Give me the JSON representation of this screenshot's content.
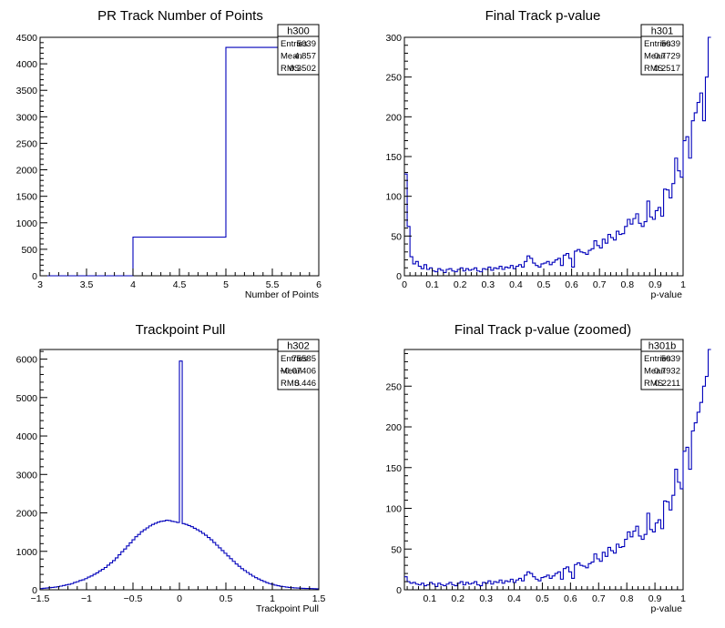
{
  "chart_data": [
    {
      "type": "histogram",
      "title": "PR Track Number of Points",
      "xlabel": "Number of Points",
      "ylabel": "",
      "xlim": [
        3,
        6
      ],
      "ylim": [
        0,
        4500
      ],
      "xticks": [
        3,
        3.5,
        4,
        4.5,
        5,
        5.5,
        6
      ],
      "xtick_labels": [
        "3",
        "3.5",
        "4",
        "4.5",
        "5",
        "5.5",
        "6"
      ],
      "yticks": [
        0,
        500,
        1000,
        1500,
        2000,
        2500,
        3000,
        3500,
        4000,
        4500
      ],
      "ytick_labels": [
        "0",
        "500",
        "1000",
        "1500",
        "2000",
        "2500",
        "3000",
        "3500",
        "4000",
        "4500"
      ],
      "bins": [
        [
          3,
          4,
          0
        ],
        [
          4,
          5,
          730
        ],
        [
          5,
          6,
          4310
        ]
      ],
      "stats": {
        "name": "h300",
        "rows": [
          [
            "Entries",
            "5039"
          ],
          [
            "Mean",
            "4.857"
          ],
          [
            "RMS",
            "0.3502"
          ]
        ]
      }
    },
    {
      "type": "histogram",
      "title": "Final Track p-value",
      "xlabel": "p-value",
      "ylabel": "",
      "xlim": [
        0,
        1
      ],
      "ylim": [
        0,
        300
      ],
      "xticks": [
        0,
        0.1,
        0.2,
        0.3,
        0.4,
        0.5,
        0.6,
        0.7,
        0.8,
        0.9,
        1
      ],
      "xtick_labels": [
        "0",
        "0.1",
        "0.2",
        "0.3",
        "0.4",
        "0.5",
        "0.6",
        "0.7",
        "0.8",
        "0.9",
        "1"
      ],
      "yticks": [
        0,
        50,
        100,
        150,
        200,
        250,
        300
      ],
      "ytick_labels": [
        "0",
        "50",
        "100",
        "150",
        "200",
        "250",
        "300"
      ],
      "bin_width": 0.01,
      "values": [
        128,
        62,
        24,
        15,
        18,
        12,
        9,
        14,
        8,
        10,
        6,
        5,
        9,
        7,
        4,
        8,
        9,
        6,
        5,
        8,
        10,
        6,
        9,
        7,
        8,
        10,
        6,
        5,
        9,
        8,
        11,
        7,
        10,
        9,
        12,
        8,
        11,
        10,
        13,
        9,
        12,
        14,
        11,
        18,
        25,
        22,
        16,
        13,
        11,
        15,
        16,
        18,
        14,
        17,
        20,
        22,
        13,
        26,
        28,
        22,
        11,
        31,
        33,
        30,
        29,
        27,
        32,
        34,
        44,
        38,
        35,
        46,
        41,
        52,
        48,
        45,
        56,
        52,
        53,
        62,
        71,
        65,
        72,
        78,
        66,
        62,
        68,
        94,
        74,
        71,
        82,
        86,
        75,
        109,
        108,
        98,
        116,
        148,
        132,
        124,
        170,
        175,
        148,
        195,
        205,
        218,
        230,
        195,
        250,
        300
      ],
      "stats": {
        "name": "h301",
        "rows": [
          [
            "Entries",
            "5039"
          ],
          [
            "Mean",
            "0.7729"
          ],
          [
            "RMS",
            "0.2517"
          ]
        ]
      }
    },
    {
      "type": "histogram",
      "title": "Trackpoint Pull",
      "xlabel": "Trackpoint Pull",
      "ylabel": "",
      "xlim": [
        -1.5,
        1.5
      ],
      "ylim": [
        0,
        6250
      ],
      "xticks": [
        -1.5,
        -1,
        -0.5,
        0,
        0.5,
        1,
        1.5
      ],
      "xtick_labels": [
        "−1.5",
        "−1",
        "−0.5",
        "0",
        "0.5",
        "1",
        "1.5"
      ],
      "yticks": [
        0,
        1000,
        2000,
        3000,
        4000,
        5000,
        6000
      ],
      "ytick_labels": [
        "0",
        "1000",
        "2000",
        "3000",
        "4000",
        "5000",
        "6000"
      ],
      "bin_width": 0.03,
      "values": [
        30,
        40,
        45,
        55,
        60,
        70,
        80,
        95,
        110,
        125,
        140,
        160,
        190,
        210,
        240,
        260,
        290,
        330,
        360,
        400,
        440,
        490,
        530,
        580,
        640,
        700,
        760,
        830,
        910,
        990,
        1060,
        1140,
        1220,
        1300,
        1380,
        1440,
        1510,
        1560,
        1610,
        1660,
        1700,
        1730,
        1760,
        1780,
        1790,
        1810,
        1800,
        1780,
        1770,
        1750,
        5950,
        1720,
        1700,
        1670,
        1640,
        1600,
        1560,
        1520,
        1470,
        1420,
        1360,
        1300,
        1230,
        1160,
        1090,
        1020,
        950,
        880,
        810,
        740,
        670,
        610,
        550,
        500,
        450,
        400,
        355,
        315,
        280,
        245,
        215,
        185,
        160,
        140,
        120,
        105,
        90,
        80,
        70,
        60,
        55,
        50,
        45,
        40,
        38,
        35,
        33,
        30,
        28,
        26
      ],
      "stats": {
        "name": "h302",
        "rows": [
          [
            "Entries",
            "75585"
          ],
          [
            "Mean",
            "−0.07406"
          ],
          [
            "RMS",
            "0.446"
          ]
        ]
      }
    },
    {
      "type": "histogram",
      "title": "Final Track p-value (zoomed)",
      "xlabel": "p-value",
      "ylabel": "",
      "xlim": [
        0.01,
        1
      ],
      "ylim": [
        0,
        295
      ],
      "xticks": [
        0.1,
        0.2,
        0.3,
        0.4,
        0.5,
        0.6,
        0.7,
        0.8,
        0.9,
        1
      ],
      "xtick_labels": [
        "0.1",
        "0.2",
        "0.3",
        "0.4",
        "0.5",
        "0.6",
        "0.7",
        "0.8",
        "0.9",
        "1"
      ],
      "yticks": [
        0,
        50,
        100,
        150,
        200,
        250
      ],
      "ytick_labels": [
        "0",
        "50",
        "100",
        "150",
        "200",
        "250"
      ],
      "bin_width": 0.0099,
      "values": [
        16,
        10,
        8,
        9,
        7,
        6,
        8,
        5,
        6,
        9,
        7,
        4,
        8,
        6,
        5,
        7,
        9,
        6,
        5,
        8,
        10,
        6,
        9,
        7,
        8,
        10,
        6,
        5,
        9,
        8,
        11,
        7,
        10,
        9,
        12,
        8,
        11,
        10,
        13,
        9,
        12,
        14,
        11,
        18,
        22,
        20,
        16,
        13,
        11,
        15,
        16,
        18,
        14,
        17,
        20,
        22,
        13,
        26,
        28,
        22,
        14,
        31,
        33,
        30,
        29,
        27,
        32,
        34,
        44,
        38,
        35,
        46,
        41,
        52,
        48,
        45,
        56,
        52,
        53,
        62,
        71,
        65,
        72,
        78,
        66,
        62,
        68,
        94,
        74,
        71,
        82,
        86,
        75,
        109,
        108,
        98,
        116,
        148,
        132,
        124,
        170,
        175,
        148,
        195,
        205,
        218,
        230,
        250,
        262,
        295
      ],
      "stats": {
        "name": "h301b",
        "rows": [
          [
            "Entries",
            "5039"
          ],
          [
            "Mean",
            "0.7932"
          ],
          [
            "RMS",
            "0.2211"
          ]
        ]
      }
    }
  ]
}
